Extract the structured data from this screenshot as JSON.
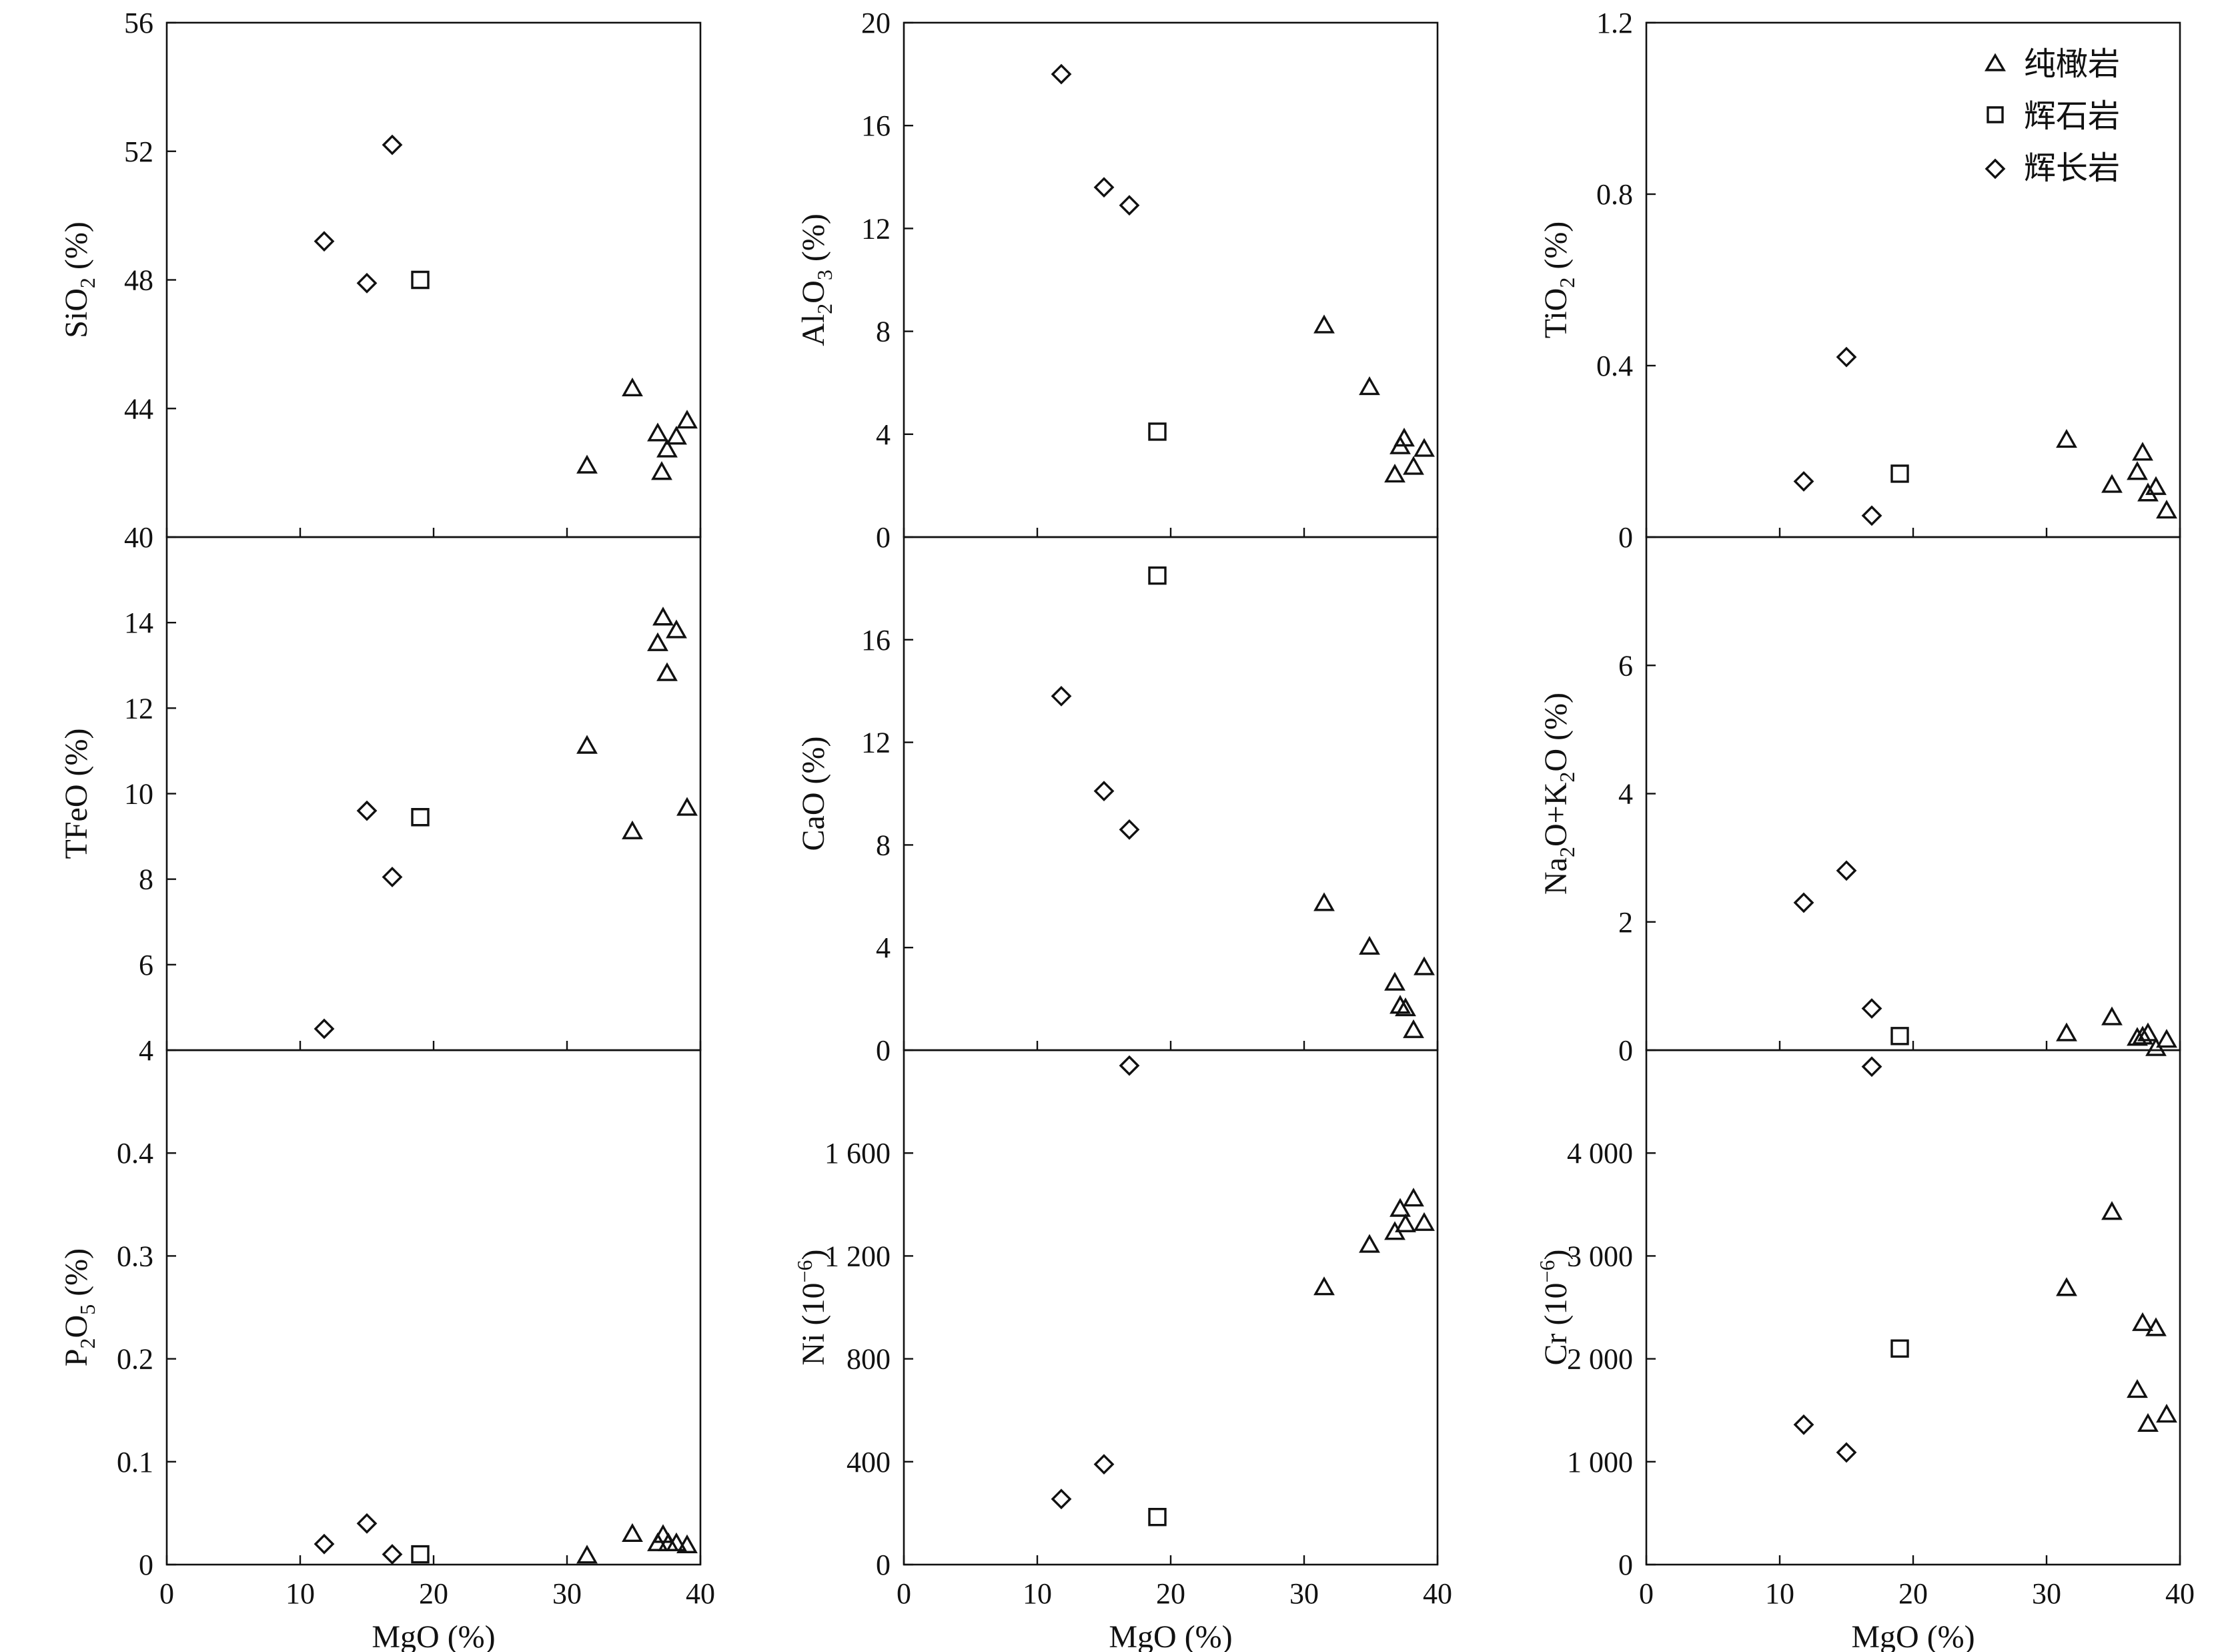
{
  "x_axis": {
    "label": "MgO (%)",
    "ticks": [
      "0",
      "10",
      "20",
      "30",
      "40"
    ],
    "range": [
      0,
      40
    ]
  },
  "legend": {
    "position": "top-right of TiO2 panel",
    "entries": [
      {
        "marker": "triangle",
        "label": "纯橄岩"
      },
      {
        "marker": "square",
        "label": "辉石岩"
      },
      {
        "marker": "diamond",
        "label": "辉长岩"
      }
    ]
  },
  "chart_data": [
    {
      "type": "scatter",
      "panel": "SiO2",
      "ylabel_main": "SiO",
      "ylabel_sub": "2",
      "ylabel_tail": " (%)",
      "ylim": [
        40,
        56
      ],
      "yticks": [
        {
          "v": 40,
          "t": "40"
        },
        {
          "v": 44,
          "t": "44"
        },
        {
          "v": 48,
          "t": "48"
        },
        {
          "v": 52,
          "t": "52"
        },
        {
          "v": 56,
          "t": "56"
        }
      ],
      "series": [
        {
          "name": "纯橄岩",
          "marker": "triangle",
          "points": [
            [
              31.5,
              42.2
            ],
            [
              34.9,
              44.6
            ],
            [
              36.8,
              43.2
            ],
            [
              37.1,
              42.0
            ],
            [
              37.5,
              42.7
            ],
            [
              38.2,
              43.1
            ],
            [
              39.0,
              43.6
            ]
          ]
        },
        {
          "name": "辉石岩",
          "marker": "square",
          "points": [
            [
              19.0,
              48.0
            ]
          ]
        },
        {
          "name": "辉长岩",
          "marker": "diamond",
          "points": [
            [
              11.8,
              49.2
            ],
            [
              15.0,
              47.9
            ],
            [
              16.9,
              52.2
            ]
          ]
        }
      ]
    },
    {
      "type": "scatter",
      "panel": "Al2O3",
      "ylabel_main": "Al",
      "ylabel_sub": "2",
      "ylabel_tail": "O",
      "ylabel_sub2": "3",
      "ylabel_tail2": " (%)",
      "ylim": [
        0,
        20
      ],
      "yticks": [
        {
          "v": 0,
          "t": "0"
        },
        {
          "v": 4,
          "t": "4"
        },
        {
          "v": 8,
          "t": "8"
        },
        {
          "v": 12,
          "t": "12"
        },
        {
          "v": 16,
          "t": "16"
        },
        {
          "v": 20,
          "t": "20"
        }
      ],
      "series": [
        {
          "name": "纯橄岩",
          "marker": "triangle",
          "points": [
            [
              31.5,
              8.2
            ],
            [
              34.9,
              5.8
            ],
            [
              36.8,
              2.4
            ],
            [
              37.2,
              3.5
            ],
            [
              37.5,
              3.8
            ],
            [
              38.2,
              2.7
            ],
            [
              39.0,
              3.4
            ]
          ]
        },
        {
          "name": "辉石岩",
          "marker": "square",
          "points": [
            [
              19.0,
              4.1
            ]
          ]
        },
        {
          "name": "辉长岩",
          "marker": "diamond",
          "points": [
            [
              11.8,
              18.0
            ],
            [
              15.0,
              13.6
            ],
            [
              16.9,
              12.9
            ]
          ]
        }
      ]
    },
    {
      "type": "scatter",
      "panel": "TiO2",
      "ylabel_main": "TiO",
      "ylabel_sub": "2",
      "ylabel_tail": " (%)",
      "ylim": [
        0,
        1.2
      ],
      "yticks": [
        {
          "v": 0,
          "t": "0"
        },
        {
          "v": 0.4,
          "t": "0.4"
        },
        {
          "v": 0.8,
          "t": "0.8"
        },
        {
          "v": 1.2,
          "t": "1.2"
        }
      ],
      "series": [
        {
          "name": "纯橄岩",
          "marker": "triangle",
          "points": [
            [
              31.5,
              0.225
            ],
            [
              34.9,
              0.12
            ],
            [
              36.8,
              0.15
            ],
            [
              37.2,
              0.195
            ],
            [
              37.6,
              0.1
            ],
            [
              38.2,
              0.115
            ],
            [
              39.0,
              0.06
            ]
          ]
        },
        {
          "name": "辉石岩",
          "marker": "square",
          "points": [
            [
              19.0,
              0.148
            ]
          ]
        },
        {
          "name": "辉长岩",
          "marker": "diamond",
          "points": [
            [
              11.8,
              0.13
            ],
            [
              15.0,
              0.42
            ],
            [
              16.9,
              0.05
            ]
          ]
        }
      ]
    },
    {
      "type": "scatter",
      "panel": "TFeO",
      "ylabel_main": "TFeO (%)",
      "ylim": [
        4,
        16
      ],
      "yticks": [
        {
          "v": 4,
          "t": "4"
        },
        {
          "v": 6,
          "t": "6"
        },
        {
          "v": 8,
          "t": "8"
        },
        {
          "v": 10,
          "t": "10"
        },
        {
          "v": 12,
          "t": "12"
        },
        {
          "v": 14,
          "t": "14"
        }
      ],
      "series": [
        {
          "name": "纯橄岩",
          "marker": "triangle",
          "points": [
            [
              31.5,
              11.1
            ],
            [
              34.9,
              9.1
            ],
            [
              36.8,
              13.5
            ],
            [
              37.2,
              14.1
            ],
            [
              37.5,
              12.8
            ],
            [
              38.2,
              13.8
            ],
            [
              39.0,
              9.65
            ]
          ]
        },
        {
          "name": "辉石岩",
          "marker": "square",
          "points": [
            [
              19.0,
              9.45
            ]
          ]
        },
        {
          "name": "辉长岩",
          "marker": "diamond",
          "points": [
            [
              11.8,
              4.5
            ],
            [
              15.0,
              9.6
            ],
            [
              16.9,
              8.05
            ]
          ]
        }
      ]
    },
    {
      "type": "scatter",
      "panel": "CaO",
      "ylabel_main": "CaO (%)",
      "ylim": [
        0,
        20
      ],
      "yticks": [
        {
          "v": 0,
          "t": "0"
        },
        {
          "v": 4,
          "t": "4"
        },
        {
          "v": 8,
          "t": "8"
        },
        {
          "v": 12,
          "t": "12"
        },
        {
          "v": 16,
          "t": "16"
        }
      ],
      "series": [
        {
          "name": "纯橄岩",
          "marker": "triangle",
          "points": [
            [
              31.5,
              5.7
            ],
            [
              34.9,
              4.0
            ],
            [
              36.8,
              2.6
            ],
            [
              37.2,
              1.7
            ],
            [
              37.6,
              1.6
            ],
            [
              38.2,
              0.75
            ],
            [
              39.0,
              3.2
            ]
          ]
        },
        {
          "name": "辉石岩",
          "marker": "square",
          "points": [
            [
              19.0,
              18.5
            ]
          ]
        },
        {
          "name": "辉长岩",
          "marker": "diamond",
          "points": [
            [
              11.8,
              13.8
            ],
            [
              15.0,
              10.1
            ],
            [
              16.9,
              8.6
            ]
          ]
        }
      ]
    },
    {
      "type": "scatter",
      "panel": "Na2O+K2O",
      "ylabel_main": "Na",
      "ylabel_sub": "2",
      "ylabel_tail": "O+K",
      "ylabel_sub2": "2",
      "ylabel_tail2": "O (%)",
      "ylim": [
        0,
        8
      ],
      "yticks": [
        {
          "v": 0,
          "t": "0"
        },
        {
          "v": 2,
          "t": "2"
        },
        {
          "v": 4,
          "t": "4"
        },
        {
          "v": 6,
          "t": "6"
        }
      ],
      "series": [
        {
          "name": "纯橄岩",
          "marker": "triangle",
          "points": [
            [
              31.5,
              0.25
            ],
            [
              34.9,
              0.5
            ],
            [
              36.8,
              0.18
            ],
            [
              37.2,
              0.2
            ],
            [
              37.6,
              0.25
            ],
            [
              38.2,
              0.02
            ],
            [
              39.0,
              0.15
            ]
          ]
        },
        {
          "name": "辉石岩",
          "marker": "square",
          "points": [
            [
              19.0,
              0.22
            ]
          ]
        },
        {
          "name": "辉长岩",
          "marker": "diamond",
          "points": [
            [
              11.8,
              2.3
            ],
            [
              15.0,
              2.8
            ],
            [
              16.9,
              0.65
            ]
          ]
        }
      ]
    },
    {
      "type": "scatter",
      "panel": "P2O5",
      "ylabel_main": "P",
      "ylabel_sub": "2",
      "ylabel_tail": "O",
      "ylabel_sub2": "5",
      "ylabel_tail2": " (%)",
      "ylim": [
        0,
        0.5
      ],
      "yticks": [
        {
          "v": 0,
          "t": "0"
        },
        {
          "v": 0.1,
          "t": "0.1"
        },
        {
          "v": 0.2,
          "t": "0.2"
        },
        {
          "v": 0.3,
          "t": "0.3"
        },
        {
          "v": 0.4,
          "t": "0.4"
        }
      ],
      "series": [
        {
          "name": "纯橄岩",
          "marker": "triangle",
          "points": [
            [
              31.5,
              0.008
            ],
            [
              34.9,
              0.029
            ],
            [
              36.8,
              0.02
            ],
            [
              37.2,
              0.028
            ],
            [
              37.6,
              0.02
            ],
            [
              38.2,
              0.02
            ],
            [
              39.0,
              0.018
            ]
          ]
        },
        {
          "name": "辉石岩",
          "marker": "square",
          "points": [
            [
              19.0,
              0.01
            ]
          ]
        },
        {
          "name": "辉长岩",
          "marker": "diamond",
          "points": [
            [
              11.8,
              0.02
            ],
            [
              15.0,
              0.04
            ],
            [
              16.9,
              0.01
            ]
          ]
        }
      ]
    },
    {
      "type": "scatter",
      "panel": "Ni",
      "ylabel_main": "Ni (10",
      "ylabel_sup": "−6",
      "ylabel_tail": ")",
      "ylim": [
        0,
        2000
      ],
      "yticks": [
        {
          "v": 0,
          "t": "0"
        },
        {
          "v": 400,
          "t": "400"
        },
        {
          "v": 800,
          "t": "800"
        },
        {
          "v": 1200,
          "t": "1 200"
        },
        {
          "v": 1600,
          "t": "1 600"
        }
      ],
      "series": [
        {
          "name": "纯橄岩",
          "marker": "triangle",
          "points": [
            [
              31.5,
              1075
            ],
            [
              34.9,
              1240
            ],
            [
              36.8,
              1290
            ],
            [
              37.2,
              1380
            ],
            [
              37.6,
              1320
            ],
            [
              38.2,
              1420
            ],
            [
              39.0,
              1325
            ]
          ]
        },
        {
          "name": "辉石岩",
          "marker": "square",
          "points": [
            [
              19.0,
              185
            ]
          ]
        },
        {
          "name": "辉长岩",
          "marker": "diamond",
          "points": [
            [
              11.8,
              255
            ],
            [
              15.0,
              390
            ],
            [
              16.9,
              1940
            ]
          ]
        }
      ]
    },
    {
      "type": "scatter",
      "panel": "Cr",
      "ylabel_main": "Cr (10",
      "ylabel_sup": "−6",
      "ylabel_tail": ")",
      "ylim": [
        0,
        5000
      ],
      "yticks": [
        {
          "v": 0,
          "t": "0"
        },
        {
          "v": 1000,
          "t": "1 000"
        },
        {
          "v": 2000,
          "t": "2 000"
        },
        {
          "v": 3000,
          "t": "3 000"
        },
        {
          "v": 4000,
          "t": "4 000"
        }
      ],
      "series": [
        {
          "name": "纯橄岩",
          "marker": "triangle",
          "points": [
            [
              31.5,
              2680
            ],
            [
              34.9,
              3420
            ],
            [
              36.8,
              1690
            ],
            [
              37.2,
              2340
            ],
            [
              37.6,
              1360
            ],
            [
              38.2,
              2290
            ],
            [
              39.0,
              1450
            ]
          ]
        },
        {
          "name": "辉石岩",
          "marker": "square",
          "points": [
            [
              19.0,
              2100
            ]
          ]
        },
        {
          "name": "辉长岩",
          "marker": "diamond",
          "points": [
            [
              11.8,
              1360
            ],
            [
              15.0,
              1090
            ],
            [
              16.9,
              4840
            ]
          ]
        }
      ]
    }
  ]
}
